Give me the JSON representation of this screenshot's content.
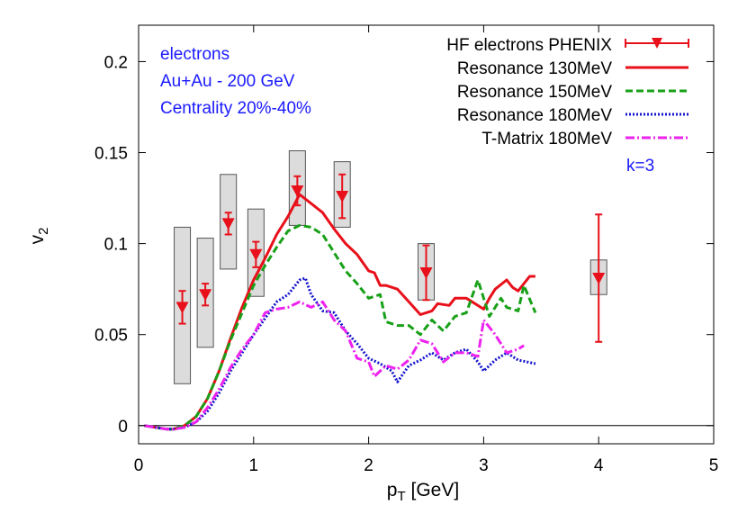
{
  "chart_data": {
    "type": "line",
    "title": "",
    "xlabel": "p",
    "xlabel_sub": "T",
    "xlabel_unit": " [GeV]",
    "ylabel": "v",
    "ylabel_sub": "2",
    "xlim": [
      0,
      5
    ],
    "ylim": [
      -0.01,
      0.22
    ],
    "xticks": [
      0,
      1,
      2,
      3,
      4,
      5
    ],
    "xtick_labels": [
      "0",
      "1",
      "2",
      "3",
      "4",
      "5"
    ],
    "yticks": [
      0,
      0.05,
      0.1,
      0.15,
      0.2
    ],
    "ytick_labels": [
      "0",
      "0.05",
      "0.1",
      "0.15",
      "0.2"
    ],
    "grid": false,
    "legend_position": "top-right",
    "zero_line": true,
    "annotations": [
      "electrons",
      "Au+Au - 200 GeV",
      "Centrality 20%-40%",
      "k=3"
    ],
    "annotation_color": "#1a1aff",
    "data_points": {
      "name": "HF electrons PHENIX",
      "color": "#e8101a",
      "marker": "triangle-down",
      "x": [
        0.38,
        0.58,
        0.78,
        1.02,
        1.38,
        1.77,
        2.5,
        4.0
      ],
      "y": [
        0.065,
        0.072,
        0.111,
        0.094,
        0.129,
        0.126,
        0.084,
        0.081
      ],
      "yerr": [
        0.009,
        0.006,
        0.006,
        0.007,
        0.008,
        0.012,
        0.015,
        0.035
      ],
      "sys_low": [
        0.023,
        0.043,
        0.086,
        0.071,
        0.11,
        0.109,
        0.069,
        0.072
      ],
      "sys_high": [
        0.109,
        0.103,
        0.138,
        0.119,
        0.151,
        0.145,
        0.1,
        0.091
      ]
    },
    "series": [
      {
        "name": "Resonance 130MeV",
        "color": "#e8101a",
        "dash": "solid",
        "x": [
          0.05,
          0.15,
          0.25,
          0.3,
          0.4,
          0.5,
          0.6,
          0.7,
          0.8,
          0.9,
          1.0,
          1.1,
          1.2,
          1.3,
          1.4,
          1.5,
          1.6,
          1.7,
          1.8,
          1.9,
          2.0,
          2.05,
          2.1,
          2.15,
          2.25,
          2.35,
          2.45,
          2.55,
          2.6,
          2.7,
          2.75,
          2.85,
          2.9,
          3.0,
          3.05,
          3.1,
          3.2,
          3.25,
          3.3,
          3.4,
          3.45
        ],
        "y": [
          0.0,
          -0.001,
          -0.002,
          -0.002,
          0.0,
          0.005,
          0.015,
          0.03,
          0.048,
          0.065,
          0.08,
          0.092,
          0.105,
          0.115,
          0.127,
          0.122,
          0.117,
          0.108,
          0.1,
          0.094,
          0.085,
          0.084,
          0.077,
          0.077,
          0.075,
          0.068,
          0.061,
          0.063,
          0.067,
          0.066,
          0.07,
          0.07,
          0.068,
          0.064,
          0.07,
          0.075,
          0.08,
          0.076,
          0.074,
          0.082,
          0.082
        ]
      },
      {
        "name": "Resonance 150MeV",
        "color": "#18a018",
        "dash": "8,4",
        "x": [
          0.05,
          0.15,
          0.25,
          0.3,
          0.4,
          0.5,
          0.6,
          0.7,
          0.8,
          0.9,
          1.0,
          1.1,
          1.2,
          1.3,
          1.4,
          1.5,
          1.6,
          1.7,
          1.8,
          1.9,
          2.0,
          2.1,
          2.15,
          2.25,
          2.35,
          2.45,
          2.55,
          2.65,
          2.75,
          2.85,
          2.95,
          3.05,
          3.15,
          3.2,
          3.3,
          3.35,
          3.45
        ],
        "y": [
          0.0,
          -0.001,
          -0.002,
          -0.002,
          0.0,
          0.005,
          0.015,
          0.03,
          0.047,
          0.062,
          0.077,
          0.088,
          0.098,
          0.107,
          0.11,
          0.109,
          0.105,
          0.095,
          0.085,
          0.078,
          0.07,
          0.072,
          0.057,
          0.055,
          0.055,
          0.05,
          0.058,
          0.052,
          0.06,
          0.062,
          0.08,
          0.06,
          0.07,
          0.065,
          0.063,
          0.077,
          0.062
        ]
      },
      {
        "name": "Resonance 180MeV",
        "color": "#1414cc",
        "dash": "2,2",
        "x": [
          0.05,
          0.15,
          0.25,
          0.3,
          0.4,
          0.5,
          0.6,
          0.7,
          0.8,
          0.9,
          1.0,
          1.1,
          1.2,
          1.3,
          1.4,
          1.45,
          1.5,
          1.6,
          1.7,
          1.8,
          1.9,
          2.0,
          2.1,
          2.2,
          2.25,
          2.35,
          2.45,
          2.55,
          2.65,
          2.75,
          2.85,
          2.95,
          3.0,
          3.1,
          3.2,
          3.3,
          3.45
        ],
        "y": [
          0.0,
          -0.001,
          -0.002,
          -0.002,
          -0.001,
          0.002,
          0.008,
          0.018,
          0.03,
          0.04,
          0.05,
          0.059,
          0.068,
          0.072,
          0.08,
          0.081,
          0.072,
          0.063,
          0.062,
          0.052,
          0.045,
          0.037,
          0.034,
          0.03,
          0.024,
          0.033,
          0.036,
          0.04,
          0.036,
          0.04,
          0.042,
          0.035,
          0.03,
          0.036,
          0.04,
          0.036,
          0.034
        ]
      },
      {
        "name": "T-Matrix 180MeV",
        "color": "#ee22ee",
        "dash": "10,3,2,3",
        "x": [
          0.05,
          0.15,
          0.25,
          0.3,
          0.4,
          0.5,
          0.6,
          0.7,
          0.8,
          0.9,
          1.0,
          1.1,
          1.2,
          1.3,
          1.4,
          1.5,
          1.6,
          1.7,
          1.8,
          1.9,
          2.0,
          2.05,
          2.15,
          2.25,
          2.35,
          2.45,
          2.55,
          2.65,
          2.75,
          2.85,
          2.95,
          3.0,
          3.1,
          3.2,
          3.3,
          3.35
        ],
        "y": [
          0.0,
          -0.001,
          -0.002,
          -0.002,
          -0.001,
          0.002,
          0.01,
          0.02,
          0.032,
          0.042,
          0.05,
          0.062,
          0.064,
          0.065,
          0.068,
          0.065,
          0.068,
          0.058,
          0.052,
          0.037,
          0.035,
          0.027,
          0.033,
          0.031,
          0.036,
          0.047,
          0.045,
          0.035,
          0.04,
          0.04,
          0.038,
          0.058,
          0.05,
          0.04,
          0.042,
          0.044
        ]
      }
    ]
  }
}
